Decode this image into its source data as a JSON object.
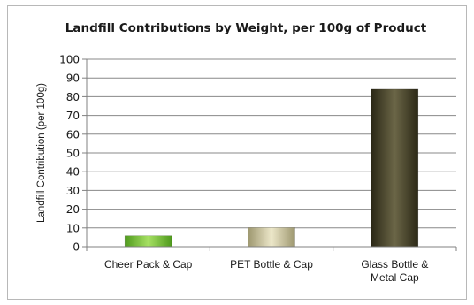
{
  "chart_data": {
    "type": "bar",
    "title": "Landfill Contributions by Weight, per 100g of Product",
    "xlabel": "",
    "ylabel": "Landfill Contribution (per 100g)",
    "ylim": [
      0,
      100
    ],
    "yticks": [
      0,
      10,
      20,
      30,
      40,
      50,
      60,
      70,
      80,
      90,
      100
    ],
    "grid": true,
    "legend": "none",
    "categories": [
      [
        "Cheer Pack & Cap"
      ],
      [
        "PET Bottle & Cap"
      ],
      [
        "Glass Bottle &",
        "Metal Cap"
      ]
    ],
    "values": [
      5.8,
      10.2,
      84
    ],
    "colors": {
      "bar_1": "#7cc43a",
      "bar_2": "#c9c39a",
      "bar_3": "#3e3a25",
      "grid": "#888888",
      "axis": "#808080"
    }
  }
}
